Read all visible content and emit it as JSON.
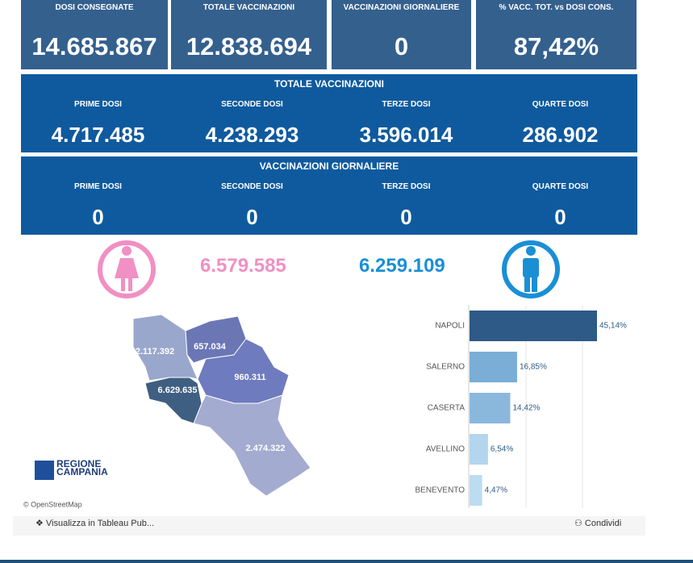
{
  "kpis": [
    {
      "label": "DOSI  CONSEGNATE",
      "value": "14.685.867"
    },
    {
      "label": "TOTALE VACCINAZIONI",
      "value": "12.838.694"
    },
    {
      "label": "VACCINAZIONI GIORNALIERE",
      "value": "0"
    },
    {
      "label": "% VACC. TOT. vs DOSI CONS.",
      "value": "87,42%"
    }
  ],
  "totale": {
    "title": "TOTALE VACCINAZIONI",
    "cells": [
      {
        "label": "PRIME DOSI",
        "value": "4.717.485"
      },
      {
        "label": "SECONDE DOSI",
        "value": "4.238.293"
      },
      {
        "label": "TERZE DOSI",
        "value": "3.596.014"
      },
      {
        "label": "QUARTE DOSI",
        "value": "286.902"
      }
    ]
  },
  "giornaliere": {
    "title": "VACCINAZIONI GIORNALIERE",
    "cells": [
      {
        "label": "PRIME DOSI",
        "value": "0"
      },
      {
        "label": "SECONDE DOSI",
        "value": "0"
      },
      {
        "label": "TERZE DOSI",
        "value": "0"
      },
      {
        "label": "QUARTE DOSI",
        "value": "0"
      }
    ]
  },
  "gender": {
    "female": "6.579.585",
    "male": "6.259.109"
  },
  "map": {
    "caserta": "2.117.392",
    "benevento": "657.034",
    "avellino": "960.311",
    "napoli": "6.629.635",
    "salerno": "2.474.322",
    "logo": [
      "REGIONE",
      "CAMPANIA"
    ],
    "attribution": "© OpenStreetMap"
  },
  "chart_data": {
    "type": "hbar",
    "categories": [
      "NAPOLI",
      "SALERNO",
      "CASERTA",
      "AVELLINO",
      "BENEVENTO"
    ],
    "values": [
      45.14,
      16.85,
      14.42,
      6.54,
      4.47
    ],
    "value_labels": [
      "45,14%",
      "16,85%",
      "14,42%",
      "6,54%",
      "4,47%"
    ],
    "colors": [
      "#2e5a87",
      "#7aaed6",
      "#8ab8dd",
      "#b3d5ee",
      "#bcdcf1"
    ],
    "xlim": [
      0,
      58
    ]
  },
  "toolbar": {
    "view": "Visualizza in Tableau Pub...",
    "share": "Condividi"
  }
}
